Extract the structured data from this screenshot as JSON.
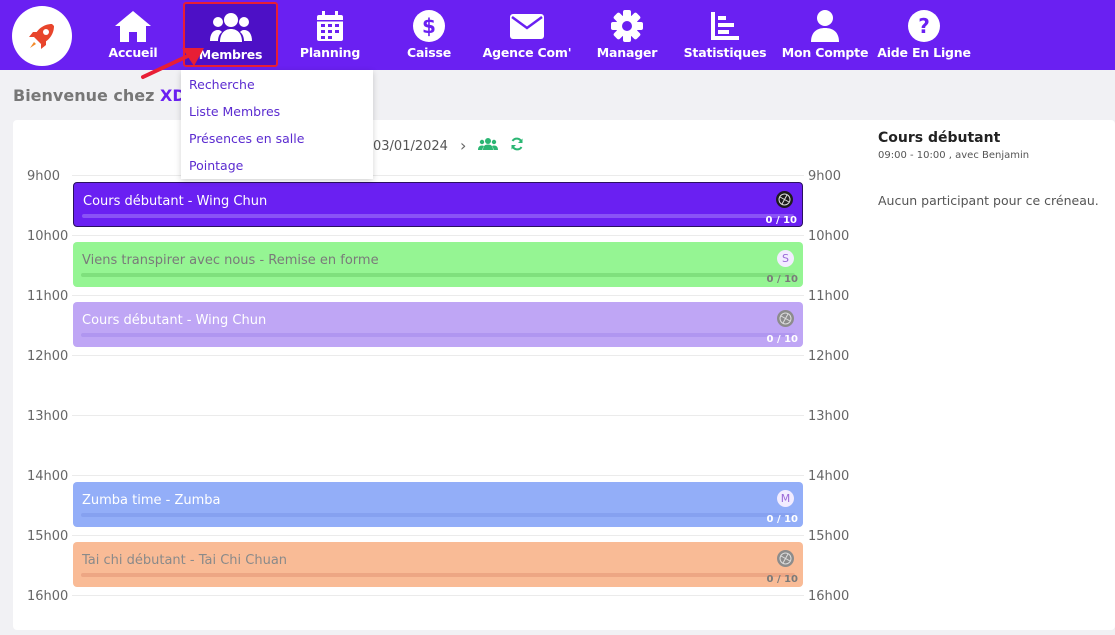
{
  "nav": {
    "items": [
      {
        "label": "Accueil",
        "icon": "home-icon"
      },
      {
        "label": "Membres",
        "icon": "users-icon"
      },
      {
        "label": "Planning",
        "icon": "calendar-icon"
      },
      {
        "label": "Caisse",
        "icon": "dollar-icon"
      },
      {
        "label": "Agence Com'",
        "icon": "envelope-icon"
      },
      {
        "label": "Manager",
        "icon": "gear-icon"
      },
      {
        "label": "Statistiques",
        "icon": "chart-icon"
      },
      {
        "label": "Mon Compte",
        "icon": "user-icon"
      },
      {
        "label": "Aide En Ligne",
        "icon": "help-icon"
      }
    ],
    "active": "Membres",
    "accent": "#6a20f2"
  },
  "dropdown": {
    "items": [
      "Recherche",
      "Liste Membres",
      "Présences en salle",
      "Pointage"
    ]
  },
  "welcome": {
    "prefix": "Bienvenue chez",
    "brand": "XD"
  },
  "planning": {
    "date": "03/01/2024",
    "hours": [
      "9h00",
      "10h00",
      "11h00",
      "12h00",
      "13h00",
      "14h00",
      "15h00",
      "16h00"
    ],
    "events": [
      {
        "title": "Cours débutant - Wing Chun",
        "count": "0 / 10",
        "bg": "#6a20f2",
        "bar": "#8a52f6",
        "text": "#ffffff",
        "avatar": "",
        "selected": true
      },
      {
        "title": "Viens transpirer avec nous - Remise en forme",
        "count": "0 / 10",
        "bg": "#95f593",
        "bar": "#7fe07d",
        "text": "#7a7a7a",
        "avatar": "S"
      },
      {
        "title": "Cours débutant - Wing Chun",
        "count": "0 / 10",
        "bg": "#bfa6f5",
        "bar": "#b096f0",
        "text": "#ffffff",
        "avatar": ""
      },
      {
        "title": "Zumba time - Zumba",
        "count": "0 / 10",
        "bg": "#93aef8",
        "bar": "#86a1f0",
        "text": "#ffffff",
        "avatar": "M"
      },
      {
        "title": "Tai chi débutant - Tai Chi Chuan",
        "count": "0 / 10",
        "bg": "#f9bb96",
        "bar": "#eda684",
        "text": "#8a8a8a",
        "avatar": ""
      }
    ]
  },
  "detail": {
    "title": "Cours débutant",
    "subtitle": "09:00 - 10:00 , avec Benjamin",
    "empty": "Aucun participant pour ce créneau."
  }
}
